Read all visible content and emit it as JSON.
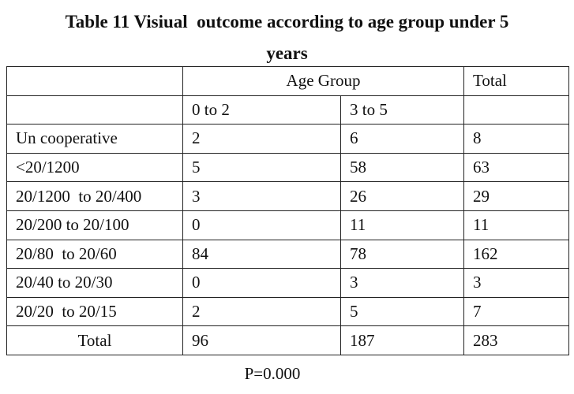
{
  "title": {
    "line1": "Table 11 Visiual  outcome according to age group under 5",
    "line2": "years"
  },
  "table": {
    "header_top": {
      "blank": "",
      "age_group": "Age Group",
      "total": "Total"
    },
    "header_sub": {
      "blank": "",
      "group1": "0 to 2",
      "group2": "3 to 5",
      "blank_total": ""
    },
    "rows": [
      {
        "label": "Un cooperative",
        "g1": "2",
        "g2": "6",
        "total": "8"
      },
      {
        "label": "<20/1200",
        "g1": "5",
        "g2": "58",
        "total": "63"
      },
      {
        "label": "20/1200  to 20/400",
        "g1": "3",
        "g2": "26",
        "total": "29"
      },
      {
        "label": "20/200 to 20/100",
        "g1": "0",
        "g2": "11",
        "total": "11"
      },
      {
        "label": "20/80  to 20/60",
        "g1": "84",
        "g2": "78",
        "total": "162"
      },
      {
        "label": "20/40 to 20/30",
        "g1": "0",
        "g2": "3",
        "total": "3"
      },
      {
        "label": "20/20  to 20/15",
        "g1": "2",
        "g2": "5",
        "total": "7"
      }
    ],
    "total_row": {
      "label": "Total",
      "g1": "96",
      "g2": "187",
      "total": "283"
    }
  },
  "footer": {
    "p_value": "P=0.000"
  }
}
